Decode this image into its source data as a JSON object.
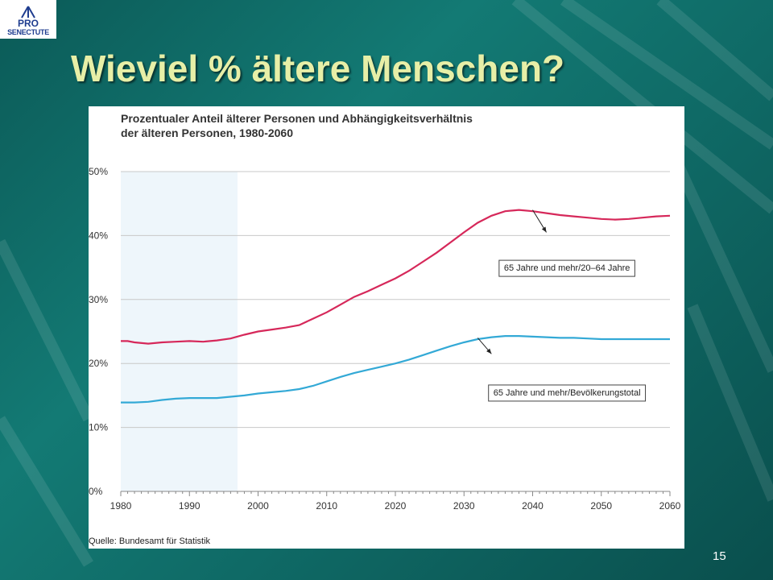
{
  "slide": {
    "title": "Wieviel % ältere Menschen?",
    "page_number": "15"
  },
  "logo": {
    "line1": "PRO",
    "line2": "SENECTUTE"
  },
  "chart_data": {
    "type": "line",
    "title_line1": "Prozentualer Anteil älterer Personen und Abhängigkeitsverhältnis",
    "title_line2": "der älteren Personen, 1980-2060",
    "source": "Quelle: Bundesamt für Statistik",
    "xlim": [
      1980,
      2060
    ],
    "ylim": [
      0,
      50
    ],
    "x_ticks": [
      1980,
      1990,
      2000,
      2010,
      2020,
      2030,
      2040,
      2050,
      2060
    ],
    "y_ticks": [
      "0%",
      "10%",
      "20%",
      "30%",
      "40%",
      "50%"
    ],
    "y_tick_values": [
      0,
      10,
      20,
      30,
      40,
      50
    ],
    "shaded_range": [
      1980,
      1997
    ],
    "grid": true,
    "series": [
      {
        "name": "65 Jahre und mehr/20–64 Jahre",
        "color": "#d6285a",
        "label_at": [
          2045,
          35
        ],
        "label_at_arrow_tip": [
          2042,
          40.5
        ],
        "label_at_arrow_base": [
          2040,
          44
        ],
        "x": [
          1980,
          1981,
          1982,
          1984,
          1986,
          1988,
          1990,
          1992,
          1994,
          1996,
          1998,
          2000,
          2002,
          2004,
          2006,
          2008,
          2010,
          2012,
          2014,
          2016,
          2018,
          2020,
          2022,
          2024,
          2026,
          2028,
          2030,
          2032,
          2034,
          2036,
          2038,
          2040,
          2042,
          2044,
          2046,
          2048,
          2050,
          2052,
          2054,
          2056,
          2058,
          2060
        ],
        "y": [
          23.5,
          23.5,
          23.3,
          23.1,
          23.3,
          23.4,
          23.5,
          23.4,
          23.6,
          23.9,
          24.5,
          25.0,
          25.3,
          25.6,
          26.0,
          27.0,
          28.0,
          29.2,
          30.4,
          31.3,
          32.3,
          33.3,
          34.5,
          35.9,
          37.3,
          38.9,
          40.5,
          42.0,
          43.1,
          43.8,
          44.0,
          43.8,
          43.5,
          43.2,
          43.0,
          42.8,
          42.6,
          42.5,
          42.6,
          42.8,
          43.0,
          43.1
        ]
      },
      {
        "name": "65 Jahre und mehr/Bevölkerungstotal",
        "color": "#33a9d6",
        "label_at": [
          2045,
          15.5
        ],
        "label_at_arrow_tip": [
          2034,
          21.5
        ],
        "label_at_arrow_base": [
          2032,
          24
        ],
        "x": [
          1980,
          1982,
          1984,
          1986,
          1988,
          1990,
          1992,
          1994,
          1996,
          1998,
          2000,
          2002,
          2004,
          2006,
          2008,
          2010,
          2012,
          2014,
          2016,
          2018,
          2020,
          2022,
          2024,
          2026,
          2028,
          2030,
          2032,
          2034,
          2036,
          2038,
          2040,
          2042,
          2044,
          2046,
          2048,
          2050,
          2052,
          2054,
          2056,
          2058,
          2060
        ],
        "y": [
          13.9,
          13.9,
          14.0,
          14.3,
          14.5,
          14.6,
          14.6,
          14.6,
          14.8,
          15.0,
          15.3,
          15.5,
          15.7,
          16.0,
          16.5,
          17.2,
          17.9,
          18.5,
          19.0,
          19.5,
          20.0,
          20.6,
          21.3,
          22.0,
          22.7,
          23.3,
          23.8,
          24.1,
          24.3,
          24.3,
          24.2,
          24.1,
          24.0,
          24.0,
          23.9,
          23.8,
          23.8,
          23.8,
          23.8,
          23.8,
          23.8
        ]
      }
    ]
  }
}
